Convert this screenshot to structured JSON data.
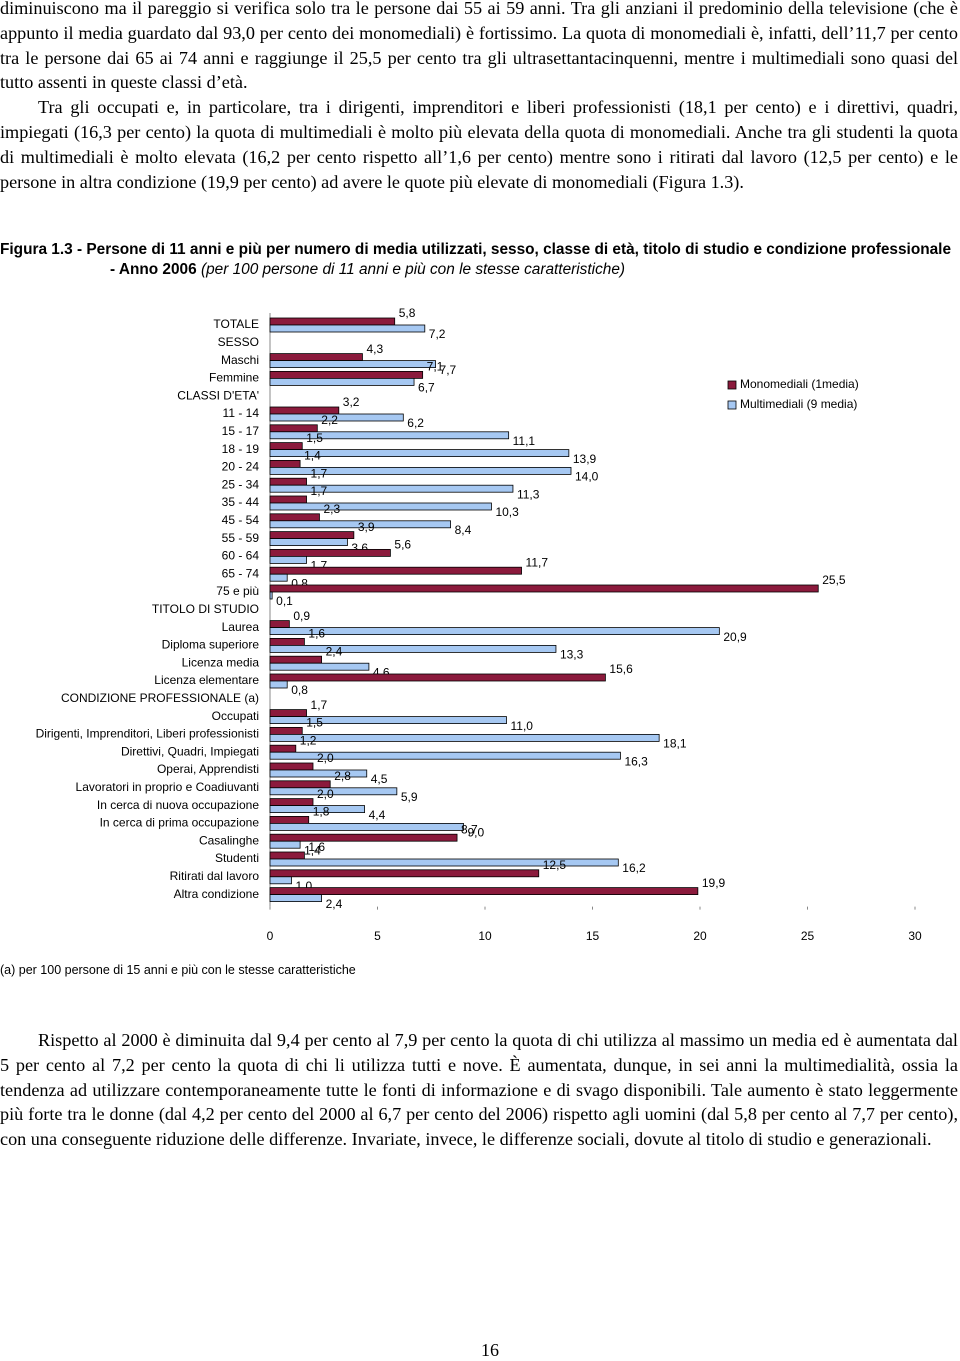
{
  "paragraphs": [
    "diminuiscono ma il pareggio si verifica solo tra le persone dai 55 ai 59 anni. Tra gli anziani il predominio della televisione (che è appunto il media guardato dal 93,0 per cento dei monomediali) è fortissimo. La quota di monomediali è, infatti, dell’11,7 per cento tra le persone dai 65 ai 74 anni e raggiunge il 25,5 per cento tra gli ultrasettantacinquenni, mentre i multimediali sono quasi del tutto assenti in queste classi d’età.",
    "Tra gli occupati e, in particolare, tra i dirigenti, imprenditori e liberi professionisti (18,1 per cento) e i direttivi, quadri, impiegati (16,3 per cento) la quota di multimediali è molto più elevata della quota di monomediali. Anche tra gli studenti la quota di multimediali è molto elevata (16,2 per cento rispetto all’1,6 per cento) mentre sono i ritirati dal lavoro (12,5 per cento) e le persone in altra condizione (19,9 per cento) ad avere le quote più elevate di monomediali (Figura 1.3)."
  ],
  "chart_data": {
    "type": "hbar",
    "title": "Figura 1.3 - Persone di 11 anni e più per numero di media utilizzati, sesso, classe di età, titolo di studio e condizione professionale - Anno 2006",
    "subtitle": "(per 100 persone di 11 anni e più con le stesse caratteristiche)",
    "categories": [
      "TOTALE",
      "SESSO",
      "Maschi",
      "Femmine",
      "CLASSI D'ETA'",
      "11 - 14",
      "15 - 17",
      "18 - 19",
      "20 - 24",
      "25 - 34",
      "35 - 44",
      "45 - 54",
      "55 - 59",
      "60 - 64",
      "65 - 74",
      "75 e più",
      "TITOLO DI STUDIO",
      "Laurea",
      "Diploma superiore",
      "Licenza media",
      "Licenza elementare",
      "CONDIZIONE PROFESSIONALE (a)",
      "Occupati",
      "Dirigenti, Imprenditori, Liberi professionisti",
      "Direttivi, Quadri, Impiegati",
      "Operai, Apprendisti",
      "Lavoratori in proprio e Coadiuvanti",
      "In cerca di nuova occupazione",
      "In cerca di prima occupazione",
      "Casalinghe",
      "Studenti",
      "Ritirati dal lavoro",
      "Altra condizione"
    ],
    "series": [
      {
        "name": "Monomediali (1media)",
        "color": "#8b1a3c",
        "values": [
          5.8,
          null,
          4.3,
          7.1,
          null,
          3.2,
          2.2,
          1.5,
          1.4,
          1.7,
          1.7,
          2.3,
          3.9,
          5.6,
          11.7,
          25.5,
          null,
          0.9,
          1.6,
          2.4,
          15.6,
          null,
          1.7,
          1.5,
          1.2,
          2.0,
          2.8,
          2.0,
          1.8,
          8.7,
          1.6,
          12.5,
          19.9
        ],
        "value_labels": [
          "5,8",
          null,
          "4,3",
          "7,1",
          null,
          "3,2",
          "2,2",
          "1,5",
          "1,4",
          "1,7",
          "1,7",
          "2,3",
          "3,9",
          "5,6",
          "11,7",
          "25,5",
          null,
          "0,9",
          "1,6",
          "2,4",
          "15,6",
          null,
          "1,7",
          "1,5",
          "1,2",
          "2,0",
          "2,8",
          "2,0",
          "1,8",
          "8,7",
          "1,6",
          "12,5",
          "19,9"
        ]
      },
      {
        "name": "Multimediali (9 media)",
        "color": "#a6c8f2",
        "values": [
          7.2,
          null,
          7.7,
          6.7,
          null,
          6.2,
          11.1,
          13.9,
          14.0,
          11.3,
          10.3,
          8.4,
          3.6,
          1.7,
          0.8,
          0.1,
          null,
          20.9,
          13.3,
          4.6,
          0.8,
          null,
          11.0,
          18.1,
          16.3,
          4.5,
          5.9,
          4.4,
          9.0,
          1.4,
          16.2,
          1.0,
          2.4
        ],
        "value_labels": [
          "7,2",
          null,
          "7,7",
          "6,7",
          null,
          "6,2",
          "11,1",
          "13,9",
          "14,0",
          "11,3",
          "10,3",
          "8,4",
          "3,6",
          "1,7",
          "0,8",
          "0,1",
          null,
          "20,9",
          "13,3",
          "4,6",
          "0,8",
          null,
          "11,0",
          "18,1",
          "16,3",
          "4,5",
          "5,9",
          "4,4",
          "9,0",
          "1,4",
          "16,2",
          "1,0",
          "2,4"
        ]
      }
    ],
    "xlim": [
      0,
      30
    ],
    "xticks": [
      0,
      5,
      10,
      15,
      20,
      25,
      30
    ],
    "legend": "right",
    "footnote": "(a) per 100 persone di 15 anni e più con le stesse caratteristiche"
  },
  "paragraphs_after": [
    "Rispetto al 2000 è diminuita dal 9,4 per cento al 7,9 per cento la quota di chi utilizza al massimo un media ed è aumentata dal 5 per cento al 7,2 per cento la quota di chi li utilizza tutti e nove. È aumentata, dunque, in sei anni la multimedialità, ossia la tendenza ad utilizzare contemporaneamente tutte le fonti di informazione e di svago disponibili. Tale aumento è stato leggermente più forte tra le donne (dal 4,2 per cento del 2000 al 6,7 per cento del 2006) rispetto agli uomini (dal 5,8 per cento al 7,7 per cento), con una conseguente riduzione delle differenze. Invariate, invece, le differenze sociali, dovute al titolo di studio e generazionali."
  ],
  "page_number": "16"
}
